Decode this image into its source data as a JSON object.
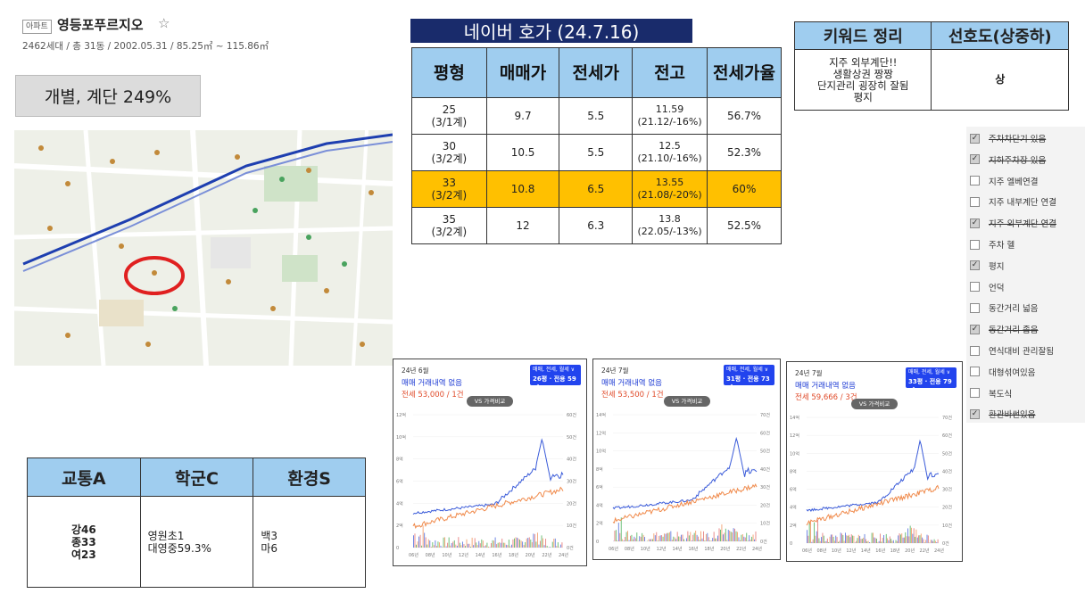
{
  "header": {
    "badge": "아파트",
    "name": "영등포푸르지오",
    "star": "☆",
    "info": "2462세대 / 총 31동 / 2002.05.31 / 85.25㎡ ~ 115.86㎡"
  },
  "far_box": "개별, 계단 249%",
  "naver": {
    "title": "네이버 호가 (24.7.16)",
    "headers": [
      "평형",
      "매매가",
      "전세가",
      "전고",
      "전세가율"
    ],
    "rows": [
      {
        "type": "25",
        "type2": "(3/1계)",
        "sale": "9.7",
        "jeonse": "5.5",
        "high": "11.59",
        "high2": "(21.12/-16%)",
        "ratio": "56.7%"
      },
      {
        "type": "30",
        "type2": "(3/2계)",
        "sale": "10.5",
        "jeonse": "5.5",
        "high": "12.5",
        "high2": "(21.10/-16%)",
        "ratio": "52.3%"
      },
      {
        "type": "33",
        "type2": "(3/2계)",
        "sale": "10.8",
        "jeonse": "6.5",
        "high": "13.55",
        "high2": "(21.08/-20%)",
        "ratio": "60%"
      },
      {
        "type": "35",
        "type2": "(3/2계)",
        "sale": "12",
        "jeonse": "6.3",
        "high": "13.8",
        "high2": "(22.05/-13%)",
        "ratio": "52.5%"
      }
    ]
  },
  "keyword": {
    "headers": [
      "키워드 정리",
      "선호도(상중하)"
    ],
    "lines": [
      "지주 외부계단!!",
      "생활상권 짱짱",
      "단지관리 굉장히 잘됨",
      "평지"
    ],
    "pref": "상"
  },
  "checklist": [
    {
      "label": "주차차단기 있음",
      "checked": true,
      "strike": true
    },
    {
      "label": "지하주차장 있음",
      "checked": true,
      "strike": true
    },
    {
      "label": "지주 엘베연결",
      "checked": false,
      "strike": false
    },
    {
      "label": "지주 내부계단 연결",
      "checked": false,
      "strike": false
    },
    {
      "label": "지주 외부계단 연결",
      "checked": true,
      "strike": true
    },
    {
      "label": "주차 헬",
      "checked": false,
      "strike": false
    },
    {
      "label": "평지",
      "checked": true,
      "strike": false
    },
    {
      "label": "언덕",
      "checked": false,
      "strike": false
    },
    {
      "label": "동간거리 넓음",
      "checked": false,
      "strike": false
    },
    {
      "label": "동간거리 좁음",
      "checked": true,
      "strike": true
    },
    {
      "label": "연식대비 관리잘됨",
      "checked": false,
      "strike": false
    },
    {
      "label": "대형섞여있음",
      "checked": false,
      "strike": false
    },
    {
      "label": "복도식",
      "checked": false,
      "strike": false
    },
    {
      "label": "환관바썬있음",
      "checked": true,
      "strike": true
    }
  ],
  "abc": {
    "headers": [
      "교통A",
      "학군C",
      "환경S"
    ],
    "col1": [
      "강46",
      "종33",
      "여23"
    ],
    "col2": [
      "영원초1",
      "대영중59.3%"
    ],
    "col3": [
      "백3",
      "마6"
    ]
  },
  "charts": [
    {
      "month": "24년 6월",
      "none": "매매 거래내역 없음",
      "rent": "전세 53,000 / 1건",
      "filter1": "매매, 전세, 월세 ∨",
      "filter2": "26평 · 전용 59㎡",
      "vs": "VS 가격비교",
      "left_ticks": [
        "12억",
        "10억",
        "8억",
        "6억",
        "4억",
        "2억",
        "0"
      ],
      "right_ticks": [
        "60건",
        "50건",
        "40건",
        "30건",
        "20건",
        "10건",
        "0건"
      ],
      "x_ticks": [
        "06년",
        "08년",
        "10년",
        "12년",
        "14년",
        "16년",
        "18년",
        "20년",
        "22년",
        "24년"
      ]
    },
    {
      "month": "24년 7월",
      "none": "매매 거래내역 없음",
      "rent": "전세 53,500 / 1건",
      "filter1": "매매, 전세, 월세 ∨",
      "filter2": "31평 · 전용 73㎡",
      "vs": "VS 가격비교",
      "left_ticks": [
        "14억",
        "12억",
        "10억",
        "8억",
        "6억",
        "4억",
        "2억",
        "0"
      ],
      "right_ticks": [
        "70건",
        "60건",
        "50건",
        "40건",
        "30건",
        "20건",
        "10건",
        "0건"
      ],
      "x_ticks": [
        "06년",
        "08년",
        "10년",
        "12년",
        "14년",
        "16년",
        "18년",
        "20년",
        "22년",
        "24년"
      ]
    },
    {
      "month": "24년 7월",
      "none": "매매 거래내역 없음",
      "rent": "전세 59,666 / 3건",
      "filter1": "매매, 전세, 월세 ∨",
      "filter2": "33평 · 전용 79㎡",
      "vs": "VS 가격비교",
      "left_ticks": [
        "14억",
        "12억",
        "10억",
        "8억",
        "6억",
        "4억",
        "2억",
        "0"
      ],
      "right_ticks": [
        "70건",
        "60건",
        "50건",
        "40건",
        "30건",
        "20건",
        "10건",
        "0건"
      ],
      "x_ticks": [
        "06년",
        "08년",
        "10년",
        "12년",
        "14년",
        "16년",
        "18년",
        "20년",
        "22년",
        "24년"
      ]
    }
  ],
  "colors": {
    "navy": "#192b6b",
    "header_blue": "#9fcdef",
    "highlight": "#ffc000",
    "sale_line": "#3a5bd9",
    "rent_line": "#f08a4b",
    "map_circle": "#e02020"
  }
}
